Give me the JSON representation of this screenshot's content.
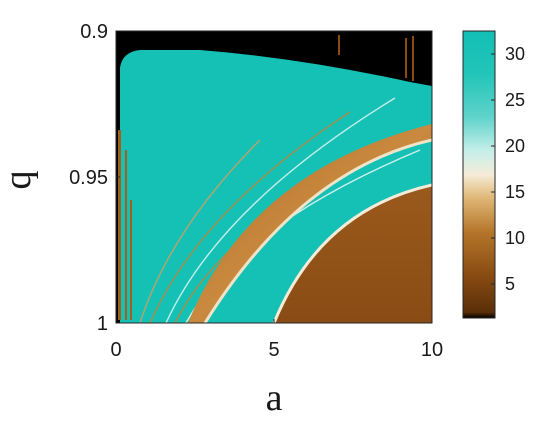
{
  "chart_data": {
    "type": "heatmap",
    "xlabel": "a",
    "ylabel": "q",
    "xlim": [
      0,
      10
    ],
    "ylim": [
      0.9,
      1
    ],
    "y_axis_direction": "reversed (0.9 at top, 1 at bottom)",
    "x_ticks": [
      "0",
      "5",
      "10"
    ],
    "y_ticks": [
      "0.9",
      "0.95",
      "1"
    ],
    "colorbar": {
      "range": [
        1,
        32
      ],
      "ticks": [
        "5",
        "10",
        "15",
        "20",
        "25",
        "30"
      ],
      "colormap": [
        "#000000",
        "#6b3a0a",
        "#a8641d",
        "#d9a35b",
        "#f3e8d0",
        "#9ee3dc",
        "#2cc7bb",
        "#12bfb4"
      ]
    },
    "regions": [
      {
        "label": "black",
        "description": "top background region",
        "value": 1
      },
      {
        "label": "teal",
        "description": "large central region",
        "value": 30
      },
      {
        "label": "brown-band",
        "description": "diagonal band from about a=2.5 at q=1 curving to a=10 at q=0.935",
        "value": 8
      },
      {
        "label": "brown-corner",
        "description": "lower-right region bounded by curve from a=5.2 at q=1 to a=10 at q=0.952",
        "value": 7
      }
    ],
    "grid": false
  },
  "ui": {
    "x_tick_labels": [
      "0",
      "5",
      "10"
    ],
    "y_tick_labels": [
      "0.9",
      "0.95",
      "1"
    ],
    "cb_tick_labels": [
      "5",
      "10",
      "15",
      "20",
      "25",
      "30"
    ]
  }
}
